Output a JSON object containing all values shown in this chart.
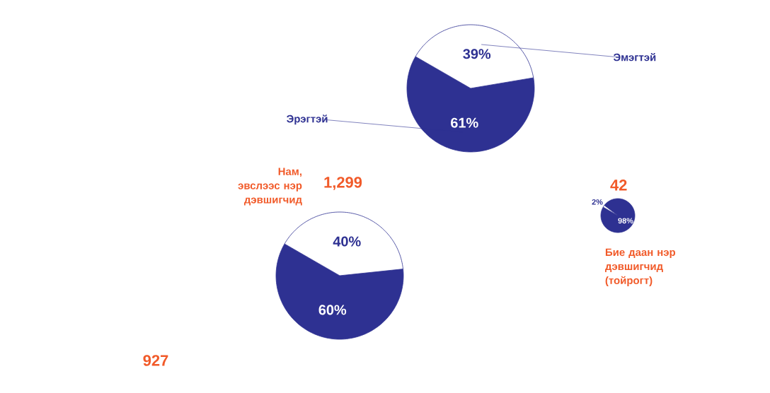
{
  "chart_data": [
    {
      "type": "pie",
      "categories": [
        "Эрэгтэй",
        "Эмэгтэй"
      ],
      "values": [
        61,
        39
      ],
      "colors": [
        "#2e3192",
        "#ffffff"
      ],
      "value_labels": [
        "61%",
        "39%"
      ]
    },
    {
      "type": "pie",
      "title": "Нам, эвслээс нэр дэвшигчид",
      "subtitle": "1,299",
      "categories": [
        null,
        null
      ],
      "values": [
        60,
        40
      ],
      "colors": [
        "#2e3192",
        "#ffffff"
      ],
      "value_labels": [
        "60%",
        "40%"
      ]
    },
    {
      "type": "pie",
      "title": "Бие даан нэр дэвшигчид (тойрогт)",
      "subtitle": "42",
      "categories": [
        null,
        null
      ],
      "values": [
        98,
        2
      ],
      "colors": [
        "#2e3192",
        "#ffffff"
      ],
      "value_labels": [
        "98%",
        "2%"
      ]
    },
    {
      "type": "other",
      "subtitle": "927"
    }
  ]
}
